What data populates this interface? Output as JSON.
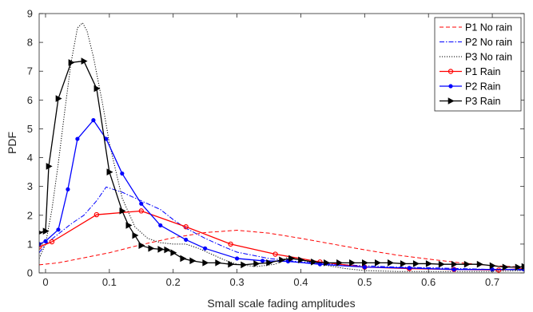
{
  "chart_data": {
    "type": "line",
    "title": "",
    "xlabel": "Small scale fading amplitudes",
    "ylabel": "PDF",
    "xlim": [
      -0.01,
      0.75
    ],
    "ylim": [
      0,
      9
    ],
    "xticks": [
      0,
      0.1,
      0.2,
      0.3,
      0.4,
      0.5,
      0.6,
      0.7
    ],
    "xtick_labels": [
      "0",
      "0.1",
      "0.2",
      "0.3",
      "0.4",
      "0.5",
      "0.6",
      "0.7"
    ],
    "yticks": [
      0,
      1,
      2,
      3,
      4,
      5,
      6,
      7,
      8,
      9
    ],
    "ytick_labels": [
      "0",
      "1",
      "2",
      "3",
      "4",
      "5",
      "6",
      "7",
      "8",
      "9"
    ],
    "grid": false,
    "legend_position": "top-right",
    "series": [
      {
        "name": "P1 No rain",
        "color": "#ff0000",
        "dash": "dashed",
        "marker": "none",
        "points": [
          [
            -0.01,
            0.28
          ],
          [
            0.02,
            0.35
          ],
          [
            0.05,
            0.48
          ],
          [
            0.1,
            0.7
          ],
          [
            0.15,
            0.98
          ],
          [
            0.2,
            1.22
          ],
          [
            0.25,
            1.4
          ],
          [
            0.3,
            1.48
          ],
          [
            0.35,
            1.38
          ],
          [
            0.4,
            1.2
          ],
          [
            0.45,
            1.0
          ],
          [
            0.5,
            0.8
          ],
          [
            0.55,
            0.62
          ],
          [
            0.6,
            0.48
          ],
          [
            0.65,
            0.35
          ],
          [
            0.7,
            0.25
          ],
          [
            0.75,
            0.2
          ]
        ]
      },
      {
        "name": "P2 No rain",
        "color": "#0000ff",
        "dash": "dashdot",
        "marker": "none",
        "points": [
          [
            -0.01,
            0.7
          ],
          [
            0.0,
            1.0
          ],
          [
            0.02,
            1.35
          ],
          [
            0.04,
            1.7
          ],
          [
            0.06,
            2.0
          ],
          [
            0.08,
            2.5
          ],
          [
            0.095,
            2.98
          ],
          [
            0.12,
            2.8
          ],
          [
            0.15,
            2.5
          ],
          [
            0.18,
            2.2
          ],
          [
            0.2,
            1.85
          ],
          [
            0.22,
            1.55
          ],
          [
            0.25,
            1.2
          ],
          [
            0.28,
            0.9
          ],
          [
            0.3,
            0.72
          ],
          [
            0.35,
            0.5
          ],
          [
            0.4,
            0.38
          ],
          [
            0.45,
            0.3
          ],
          [
            0.5,
            0.25
          ],
          [
            0.55,
            0.2
          ],
          [
            0.6,
            0.18
          ],
          [
            0.65,
            0.15
          ],
          [
            0.7,
            0.12
          ],
          [
            0.75,
            0.1
          ]
        ]
      },
      {
        "name": "P3 No rain",
        "color": "#000000",
        "dash": "dotted",
        "marker": "none",
        "points": [
          [
            -0.01,
            0.5
          ],
          [
            0.0,
            1.0
          ],
          [
            0.01,
            2.2
          ],
          [
            0.02,
            3.8
          ],
          [
            0.03,
            5.6
          ],
          [
            0.04,
            7.3
          ],
          [
            0.05,
            8.5
          ],
          [
            0.058,
            8.68
          ],
          [
            0.065,
            8.4
          ],
          [
            0.075,
            7.5
          ],
          [
            0.09,
            5.8
          ],
          [
            0.1,
            4.5
          ],
          [
            0.12,
            2.6
          ],
          [
            0.14,
            1.6
          ],
          [
            0.16,
            1.2
          ],
          [
            0.18,
            1.05
          ],
          [
            0.2,
            1.0
          ],
          [
            0.22,
            1.0
          ],
          [
            0.24,
            0.85
          ],
          [
            0.26,
            0.65
          ],
          [
            0.28,
            0.45
          ],
          [
            0.3,
            0.3
          ],
          [
            0.33,
            0.22
          ],
          [
            0.36,
            0.3
          ],
          [
            0.38,
            0.55
          ],
          [
            0.4,
            0.45
          ],
          [
            0.43,
            0.3
          ],
          [
            0.47,
            0.15
          ],
          [
            0.5,
            0.08
          ],
          [
            0.55,
            0.05
          ],
          [
            0.6,
            0.05
          ],
          [
            0.65,
            0.05
          ],
          [
            0.7,
            0.05
          ],
          [
            0.75,
            0.08
          ]
        ]
      },
      {
        "name": "P1 Rain",
        "color": "#ff0000",
        "dash": "solid",
        "marker": "circle",
        "points": [
          [
            -0.01,
            0.9
          ],
          [
            0.01,
            1.08
          ],
          [
            0.08,
            2.02
          ],
          [
            0.15,
            2.15
          ],
          [
            0.22,
            1.6
          ],
          [
            0.29,
            1.0
          ],
          [
            0.36,
            0.65
          ],
          [
            0.43,
            0.38
          ],
          [
            0.5,
            0.2
          ],
          [
            0.57,
            0.15
          ],
          [
            0.64,
            0.12
          ],
          [
            0.71,
            0.1
          ],
          [
            0.75,
            0.15
          ]
        ]
      },
      {
        "name": "P2 Rain",
        "color": "#0000ff",
        "dash": "solid",
        "marker": "dot",
        "points": [
          [
            -0.01,
            1.0
          ],
          [
            0.0,
            1.1
          ],
          [
            0.02,
            1.5
          ],
          [
            0.035,
            2.9
          ],
          [
            0.05,
            4.65
          ],
          [
            0.075,
            5.3
          ],
          [
            0.095,
            4.65
          ],
          [
            0.12,
            3.45
          ],
          [
            0.15,
            2.4
          ],
          [
            0.18,
            1.65
          ],
          [
            0.22,
            1.15
          ],
          [
            0.25,
            0.85
          ],
          [
            0.3,
            0.5
          ],
          [
            0.34,
            0.42
          ],
          [
            0.38,
            0.4
          ],
          [
            0.43,
            0.3
          ],
          [
            0.5,
            0.2
          ],
          [
            0.57,
            0.17
          ],
          [
            0.64,
            0.12
          ],
          [
            0.7,
            0.12
          ],
          [
            0.75,
            0.12
          ]
        ]
      },
      {
        "name": "P3 Rain",
        "color": "#000000",
        "dash": "solid",
        "marker": "triangle-right",
        "points": [
          [
            -0.01,
            1.4
          ],
          [
            0.0,
            1.45
          ],
          [
            0.005,
            3.7
          ],
          [
            0.02,
            6.05
          ],
          [
            0.04,
            7.3
          ],
          [
            0.06,
            7.35
          ],
          [
            0.08,
            6.4
          ],
          [
            0.1,
            3.5
          ],
          [
            0.12,
            2.15
          ],
          [
            0.13,
            1.65
          ],
          [
            0.14,
            1.3
          ],
          [
            0.15,
            0.95
          ],
          [
            0.165,
            0.85
          ],
          [
            0.18,
            0.82
          ],
          [
            0.19,
            0.8
          ],
          [
            0.2,
            0.7
          ],
          [
            0.215,
            0.5
          ],
          [
            0.23,
            0.42
          ],
          [
            0.25,
            0.35
          ],
          [
            0.27,
            0.35
          ],
          [
            0.29,
            0.3
          ],
          [
            0.31,
            0.28
          ],
          [
            0.33,
            0.32
          ],
          [
            0.35,
            0.35
          ],
          [
            0.37,
            0.45
          ],
          [
            0.385,
            0.5
          ],
          [
            0.4,
            0.45
          ],
          [
            0.42,
            0.38
          ],
          [
            0.44,
            0.35
          ],
          [
            0.46,
            0.35
          ],
          [
            0.48,
            0.35
          ],
          [
            0.5,
            0.35
          ],
          [
            0.52,
            0.35
          ],
          [
            0.54,
            0.35
          ],
          [
            0.56,
            0.32
          ],
          [
            0.58,
            0.32
          ],
          [
            0.6,
            0.32
          ],
          [
            0.62,
            0.3
          ],
          [
            0.64,
            0.3
          ],
          [
            0.66,
            0.3
          ],
          [
            0.68,
            0.3
          ],
          [
            0.7,
            0.25
          ],
          [
            0.72,
            0.2
          ],
          [
            0.74,
            0.2
          ],
          [
            0.75,
            0.22
          ]
        ]
      }
    ]
  }
}
